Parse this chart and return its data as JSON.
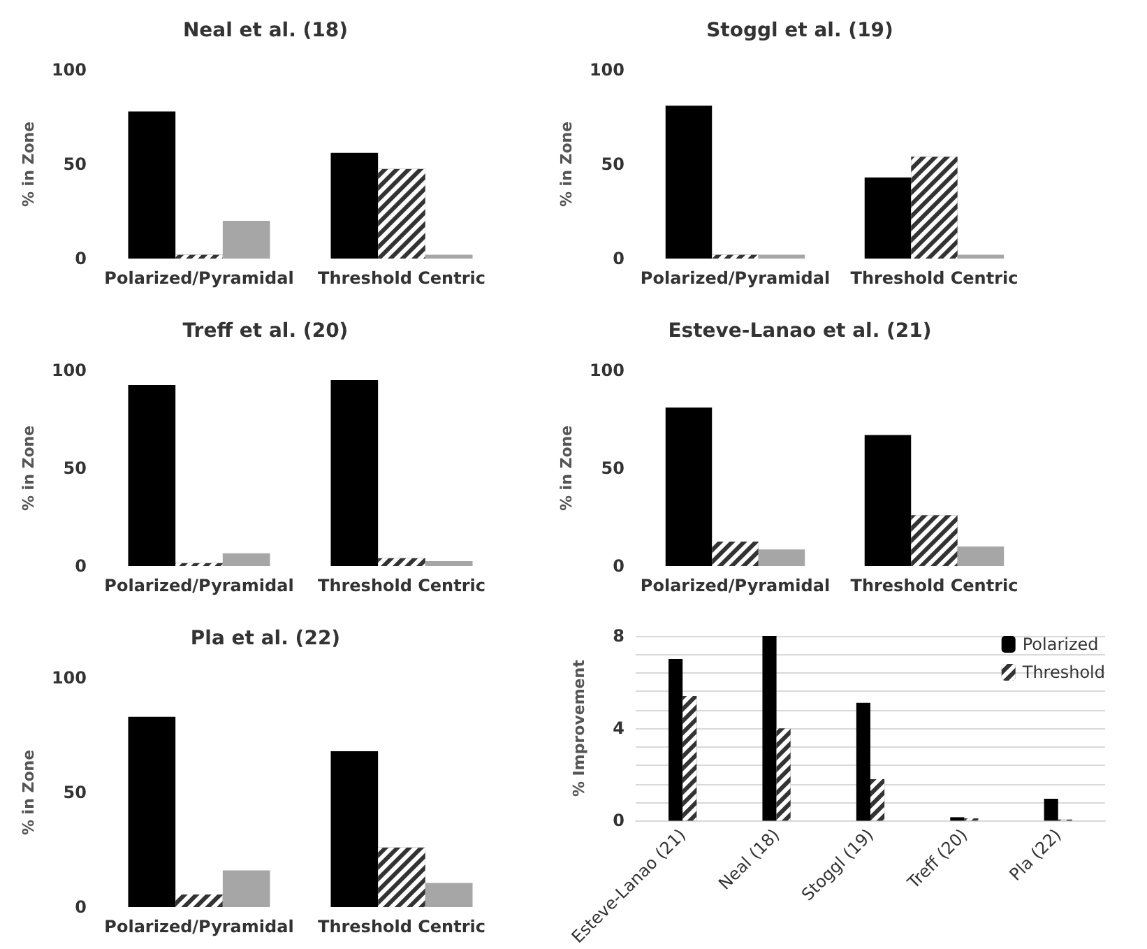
{
  "chart_data": [
    {
      "type": "bar",
      "title": "Neal et al. (18)",
      "ylabel": "% in Zone",
      "categories": [
        "Polarized/Pyramidal",
        "Threshold Centric"
      ],
      "ylim": [
        0,
        100
      ],
      "yticks": [
        0,
        50,
        100
      ],
      "grid": false,
      "legend": false,
      "series": [
        {
          "color": "#000000",
          "values": [
            78,
            56
          ]
        },
        {
          "color": "#333333",
          "values": [
            2,
            47.5
          ]
        },
        {
          "color": "#a6a6a6",
          "values": [
            20,
            2
          ]
        }
      ]
    },
    {
      "type": "bar",
      "title": "Stoggl et al. (19)",
      "ylabel": "% in Zone",
      "categories": [
        "Polarized/Pyramidal",
        "Threshold Centric"
      ],
      "ylim": [
        0,
        100
      ],
      "yticks": [
        0,
        50,
        100
      ],
      "grid": false,
      "legend": false,
      "series": [
        {
          "color": "#000000",
          "values": [
            81,
            43
          ]
        },
        {
          "color": "#333333",
          "values": [
            2,
            54
          ]
        },
        {
          "color": "#a6a6a6",
          "values": [
            2,
            2
          ]
        }
      ]
    },
    {
      "type": "bar",
      "title": "Treff et al. (20)",
      "ylabel": "% in Zone",
      "categories": [
        "Polarized/Pyramidal",
        "Threshold Centric"
      ],
      "ylim": [
        0,
        100
      ],
      "yticks": [
        0,
        50,
        100
      ],
      "grid": false,
      "legend": false,
      "series": [
        {
          "color": "#000000",
          "values": [
            92.5,
            95
          ]
        },
        {
          "color": "#333333",
          "values": [
            1.5,
            4
          ]
        },
        {
          "color": "#a6a6a6",
          "values": [
            6.5,
            2.5
          ]
        }
      ]
    },
    {
      "type": "bar",
      "title": "Esteve-Lanao et al. (21)",
      "ylabel": "% in Zone",
      "categories": [
        "Polarized/Pyramidal",
        "Threshold Centric"
      ],
      "ylim": [
        0,
        100
      ],
      "yticks": [
        0,
        50,
        100
      ],
      "grid": false,
      "legend": false,
      "series": [
        {
          "color": "#000000",
          "values": [
            81,
            67
          ]
        },
        {
          "color": "#333333",
          "values": [
            12.5,
            26
          ]
        },
        {
          "color": "#a6a6a6",
          "values": [
            8.5,
            10
          ]
        }
      ]
    },
    {
      "type": "bar",
      "title": "Pla et al. (22)",
      "ylabel": "% in Zone",
      "categories": [
        "Polarized/Pyramidal",
        "Threshold Centric"
      ],
      "ylim": [
        0,
        100
      ],
      "yticks": [
        0,
        50,
        100
      ],
      "grid": false,
      "legend": false,
      "series": [
        {
          "color": "#000000",
          "values": [
            83,
            68
          ]
        },
        {
          "color": "#333333",
          "values": [
            5.5,
            26
          ]
        },
        {
          "color": "#a6a6a6",
          "values": [
            16,
            10.5
          ]
        }
      ]
    },
    {
      "type": "bar",
      "ylabel": "% Improvement",
      "categories": [
        "Esteve-Lanao (21)",
        "Neal (18)",
        "Stoggl (19)",
        "Treff (20)",
        "Pla (22)"
      ],
      "ylim": [
        0,
        8
      ],
      "yticks": [
        0,
        {
          "value": 0.8,
          "label": null
        },
        {
          "value": 1.6,
          "label": null
        },
        {
          "value": 2.4,
          "label": null
        },
        {
          "value": 3.2,
          "label": null
        },
        4,
        {
          "value": 4.8,
          "label": null
        },
        {
          "value": 5.6,
          "label": null
        },
        {
          "value": 6.4,
          "label": null
        },
        {
          "value": 7.2,
          "label": null
        },
        8
      ],
      "grid": "y",
      "legend": "top right",
      "series": [
        {
          "name": "Polarized",
          "color": "#000000",
          "values": [
            7.0,
            8.0,
            5.1,
            0.15,
            0.95
          ]
        },
        {
          "name": "Threshold",
          "color": "#333333",
          "values": [
            5.4,
            4.0,
            1.8,
            0.1,
            0.05
          ]
        }
      ]
    }
  ]
}
